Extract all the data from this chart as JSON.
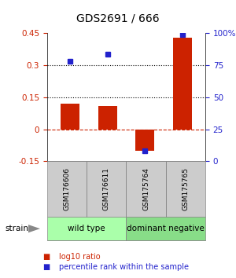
{
  "title": "GDS2691 / 666",
  "samples": [
    "GSM176606",
    "GSM176611",
    "GSM175764",
    "GSM175765"
  ],
  "log10_ratio": [
    0.12,
    0.11,
    -0.1,
    0.43
  ],
  "percentile_rank": [
    0.78,
    0.84,
    0.08,
    0.99
  ],
  "groups": [
    {
      "name": "wild type",
      "samples": [
        0,
        1
      ],
      "color": "#aaffaa"
    },
    {
      "name": "dominant negative",
      "samples": [
        2,
        3
      ],
      "color": "#88dd88"
    }
  ],
  "ylim": [
    -0.15,
    0.45
  ],
  "y_left_ticks": [
    -0.15,
    0.0,
    0.15,
    0.3,
    0.45
  ],
  "y_right_ticks": [
    0,
    25,
    50,
    75,
    100
  ],
  "hlines": [
    0.15,
    0.3
  ],
  "hline_zero": 0.0,
  "bar_color": "#cc2200",
  "dot_color": "#2222cc",
  "bar_width": 0.5,
  "ylabel_right_color": "#2222cc",
  "title_fontsize": 10,
  "tick_fontsize": 7.5,
  "legend_bar_label": "log10 ratio",
  "legend_dot_label": "percentile rank within the sample",
  "strain_label": "strain",
  "group_label_fontsize": 7.5,
  "sample_label_fontsize": 6.5,
  "sample_box_color": "#cccccc",
  "bg_color": "#ffffff"
}
